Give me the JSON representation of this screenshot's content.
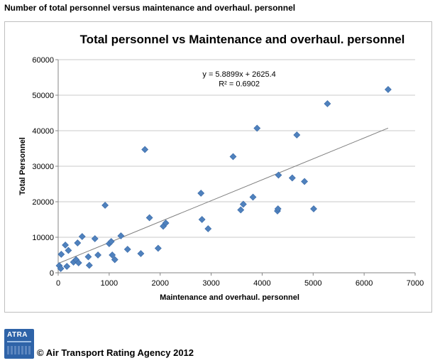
{
  "page_heading": "Number of total personnel versus maintenance and overhaul. personnel",
  "footer": {
    "logo_text": "ATRA",
    "copyright": "© Air Transport Rating Agency 2012"
  },
  "chart_data": {
    "type": "scatter",
    "title": "Total personnel vs Maintenance and overhaul. personnel",
    "xlabel": "Maintenance and overhaul. personnel",
    "ylabel": "Total Personnel",
    "xlim": [
      0,
      7000
    ],
    "ylim": [
      0,
      60000
    ],
    "x_ticks": [
      "0",
      "1000",
      "2000",
      "3000",
      "4000",
      "5000",
      "6000",
      "7000"
    ],
    "y_ticks": [
      "0",
      "10000",
      "20000",
      "30000",
      "40000",
      "50000",
      "60000"
    ],
    "grid": "horizontal",
    "marker_color": "#4f81bd",
    "trendline_color": "#7f7f7f",
    "trendline": {
      "slope": 5.8899,
      "intercept": 2625.4
    },
    "equation_label": "y = 5.8899x + 2625.4",
    "r2_label": "R² = 0.6902",
    "points": [
      {
        "x": 20,
        "y": 2000
      },
      {
        "x": 50,
        "y": 1200
      },
      {
        "x": 60,
        "y": 5200
      },
      {
        "x": 140,
        "y": 7800
      },
      {
        "x": 170,
        "y": 1800
      },
      {
        "x": 200,
        "y": 6300
      },
      {
        "x": 300,
        "y": 3000
      },
      {
        "x": 350,
        "y": 3700
      },
      {
        "x": 380,
        "y": 8400
      },
      {
        "x": 400,
        "y": 2800
      },
      {
        "x": 470,
        "y": 10200
      },
      {
        "x": 590,
        "y": 4500
      },
      {
        "x": 610,
        "y": 2100
      },
      {
        "x": 720,
        "y": 9600
      },
      {
        "x": 780,
        "y": 5000
      },
      {
        "x": 920,
        "y": 19000
      },
      {
        "x": 1000,
        "y": 8200
      },
      {
        "x": 1040,
        "y": 8800
      },
      {
        "x": 1060,
        "y": 5000
      },
      {
        "x": 1110,
        "y": 3700
      },
      {
        "x": 1230,
        "y": 10400
      },
      {
        "x": 1360,
        "y": 6600
      },
      {
        "x": 1620,
        "y": 5400
      },
      {
        "x": 1700,
        "y": 34700
      },
      {
        "x": 1790,
        "y": 15500
      },
      {
        "x": 1960,
        "y": 6900
      },
      {
        "x": 2060,
        "y": 13100
      },
      {
        "x": 2110,
        "y": 14000
      },
      {
        "x": 2800,
        "y": 22400
      },
      {
        "x": 2820,
        "y": 15000
      },
      {
        "x": 2940,
        "y": 12400
      },
      {
        "x": 3430,
        "y": 32700
      },
      {
        "x": 3580,
        "y": 17700
      },
      {
        "x": 3630,
        "y": 19300
      },
      {
        "x": 3820,
        "y": 21300
      },
      {
        "x": 3900,
        "y": 40700
      },
      {
        "x": 4300,
        "y": 17400
      },
      {
        "x": 4310,
        "y": 18000
      },
      {
        "x": 4320,
        "y": 27500
      },
      {
        "x": 4590,
        "y": 26700
      },
      {
        "x": 4680,
        "y": 38800
      },
      {
        "x": 4830,
        "y": 25700
      },
      {
        "x": 5010,
        "y": 18000
      },
      {
        "x": 5280,
        "y": 47600
      },
      {
        "x": 6470,
        "y": 51600
      }
    ]
  }
}
